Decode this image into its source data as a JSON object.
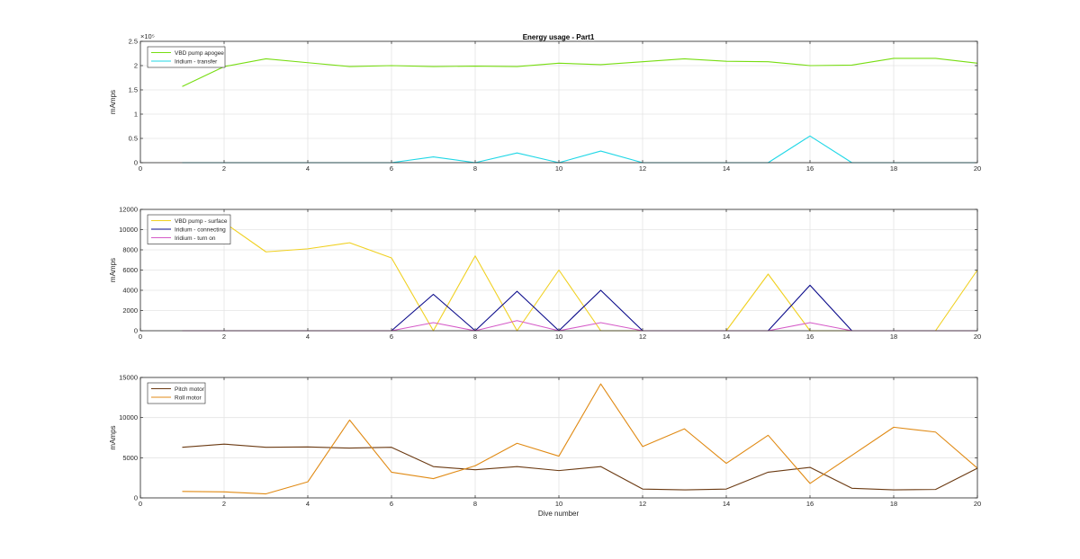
{
  "figure": {
    "title": "Energy usage - Part1",
    "xlabel": "Dive number"
  },
  "chart_data": [
    {
      "type": "line",
      "title": "Energy usage - Part1",
      "xlabel": "",
      "ylabel": "mAmps",
      "exponent_label": "×10⁵",
      "xlim": [
        0,
        20
      ],
      "ylim": [
        0,
        2.5
      ],
      "xticks": [
        0,
        2,
        4,
        6,
        8,
        10,
        12,
        14,
        16,
        18,
        20
      ],
      "yticks": [
        0,
        0.5,
        1,
        1.5,
        2,
        2.5
      ],
      "ytick_labels": [
        "0",
        "0.5",
        "1",
        "1.5",
        "2",
        "2.5"
      ],
      "grid": true,
      "legend_position": "top-left",
      "x": [
        1,
        2,
        3,
        4,
        5,
        6,
        7,
        8,
        9,
        10,
        11,
        12,
        13,
        14,
        15,
        16,
        17,
        18,
        19,
        20
      ],
      "series": [
        {
          "name": "VBD pump apogee",
          "color": "#77dd11",
          "values": [
            1.57,
            1.98,
            2.14,
            2.06,
            1.98,
            2.0,
            1.98,
            1.99,
            1.98,
            2.05,
            2.02,
            2.08,
            2.14,
            2.09,
            2.08,
            2.0,
            2.01,
            2.15,
            2.15,
            2.05
          ]
        },
        {
          "name": "Iridium - transfer",
          "color": "#1fd7e6",
          "values": [
            0,
            0,
            0,
            0,
            0,
            0,
            0.12,
            0,
            0.2,
            0,
            0.24,
            0,
            0,
            0,
            0,
            0.55,
            0,
            0,
            0,
            0
          ]
        }
      ]
    },
    {
      "type": "line",
      "title": "",
      "xlabel": "",
      "ylabel": "mAmps",
      "xlim": [
        0,
        20
      ],
      "ylim": [
        0,
        12000
      ],
      "xticks": [
        0,
        2,
        4,
        6,
        8,
        10,
        12,
        14,
        16,
        18,
        20
      ],
      "yticks": [
        0,
        2000,
        4000,
        6000,
        8000,
        10000,
        12000
      ],
      "ytick_labels": [
        "0",
        "2000",
        "4000",
        "6000",
        "8000",
        "10000",
        "12000"
      ],
      "grid": true,
      "legend_position": "top-left",
      "x": [
        1,
        2,
        3,
        4,
        5,
        6,
        7,
        8,
        9,
        10,
        11,
        12,
        13,
        14,
        15,
        16,
        17,
        18,
        19,
        20
      ],
      "series": [
        {
          "name": "VBD pump - surface",
          "color": "#f0d020",
          "values": [
            11300,
            10700,
            7800,
            8100,
            8700,
            7200,
            0,
            7400,
            0,
            6000,
            0,
            0,
            0,
            0,
            5600,
            0,
            0,
            0,
            0,
            6000
          ]
        },
        {
          "name": "Iridium - connecting",
          "color": "#0a0a8a",
          "values": [
            0,
            0,
            0,
            0,
            0,
            0,
            3600,
            0,
            3900,
            0,
            4000,
            0,
            0,
            0,
            0,
            4500,
            0,
            0,
            0,
            0
          ]
        },
        {
          "name": "Iridium - turn on",
          "color": "#d55bc8",
          "values": [
            0,
            0,
            0,
            0,
            0,
            0,
            800,
            0,
            1000,
            0,
            800,
            0,
            0,
            0,
            0,
            800,
            0,
            0,
            0,
            0
          ]
        }
      ]
    },
    {
      "type": "line",
      "title": "",
      "xlabel": "Dive number",
      "ylabel": "mAmps",
      "xlim": [
        0,
        20
      ],
      "ylim": [
        0,
        15000
      ],
      "xticks": [
        0,
        2,
        4,
        6,
        8,
        10,
        12,
        14,
        16,
        18,
        20
      ],
      "yticks": [
        0,
        5000,
        10000,
        15000
      ],
      "ytick_labels": [
        "0",
        "5000",
        "10000",
        "15000"
      ],
      "grid": true,
      "legend_position": "top-left",
      "x": [
        1,
        2,
        3,
        4,
        5,
        6,
        7,
        8,
        9,
        10,
        11,
        12,
        13,
        14,
        15,
        16,
        17,
        18,
        19,
        20
      ],
      "series": [
        {
          "name": "Pitch motor",
          "color": "#6b3a12",
          "values": [
            6300,
            6700,
            6300,
            6350,
            6200,
            6300,
            3900,
            3500,
            3900,
            3400,
            3900,
            1100,
            1000,
            1100,
            3200,
            3800,
            1200,
            1000,
            1050,
            3700
          ]
        },
        {
          "name": "Roll motor",
          "color": "#e08a14",
          "values": [
            800,
            750,
            500,
            2000,
            9700,
            3200,
            2400,
            4000,
            6800,
            5200,
            14200,
            6400,
            8600,
            4300,
            7800,
            1800,
            5300,
            8800,
            8200,
            3700
          ]
        }
      ]
    }
  ]
}
